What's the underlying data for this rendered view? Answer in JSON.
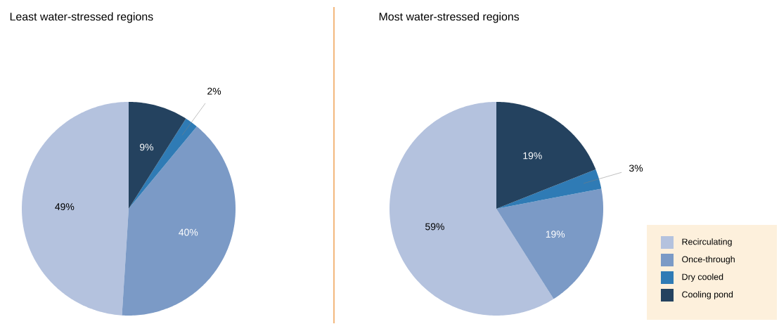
{
  "chart_data": [
    {
      "type": "pie",
      "title": "Least water-stressed regions",
      "categories": [
        null,
        null,
        null,
        null
      ],
      "values": [
        49,
        40,
        2,
        9
      ],
      "value_labels": [
        "49%",
        "40%",
        "2%",
        "9%"
      ],
      "colors": [
        "#b4c2de",
        "#7b9ac6",
        "#2f7bb5",
        "#24425f"
      ]
    },
    {
      "type": "pie",
      "title": "Most water-stressed regions",
      "categories": [
        "Recirculating",
        "Once-through",
        "Dry cooled",
        "Cooling pond"
      ],
      "values": [
        59,
        19,
        3,
        19
      ],
      "value_labels": [
        "59%",
        "19%",
        "3%",
        "19%"
      ],
      "colors": [
        "#b4c2de",
        "#7b9ac6",
        "#2f7bb5",
        "#24425f"
      ],
      "legend": "bottom right"
    }
  ]
}
